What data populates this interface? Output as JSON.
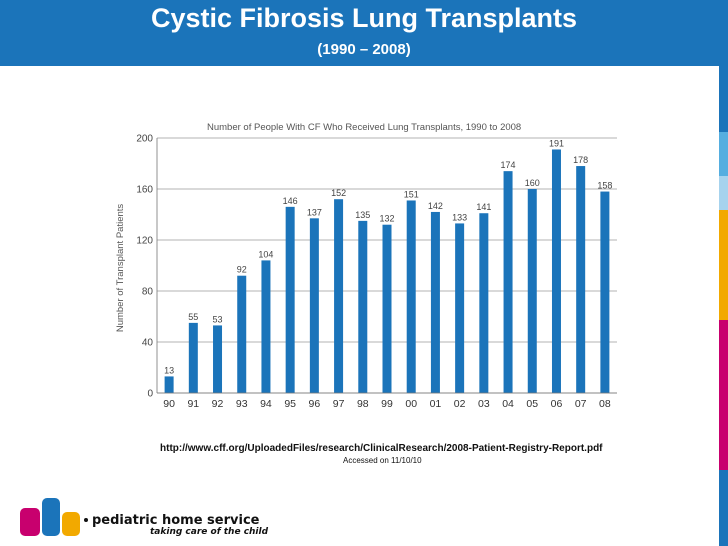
{
  "slide": {
    "title": "Cystic Fibrosis Lung Transplants",
    "subtitle": "(1990 – 2008)"
  },
  "colors": {
    "header": "#1b74ba",
    "bar": "#1b74ba",
    "deco_segments": [
      "#1b74ba",
      "#55aee0",
      "#a6d3ee",
      "#f2a900",
      "#c8006e",
      "#1b74ba"
    ]
  },
  "chart_data": {
    "type": "bar",
    "title": "Number of People With CF Who Received Lung Transplants, 1990 to 2008",
    "xlabel": "",
    "ylabel": "Number of Transplant Patients",
    "ylim": [
      0,
      200
    ],
    "yticks": [
      0,
      40,
      80,
      120,
      160,
      200
    ],
    "grid": true,
    "categories": [
      "90",
      "91",
      "92",
      "93",
      "94",
      "95",
      "96",
      "97",
      "98",
      "99",
      "00",
      "01",
      "02",
      "03",
      "04",
      "05",
      "06",
      "07",
      "08"
    ],
    "values": [
      13,
      55,
      53,
      92,
      104,
      146,
      137,
      152,
      135,
      132,
      151,
      142,
      133,
      141,
      174,
      160,
      191,
      178,
      158
    ]
  },
  "source": {
    "url": "http://www.cff.org/UploadedFiles/research/ClinicalResearch/2008-Patient-Registry-Report.pdf",
    "accessed": "Accessed on 11/10/10"
  },
  "logo": {
    "letters": "phs",
    "name": "pediatric home service",
    "tagline": "taking care of the child"
  }
}
